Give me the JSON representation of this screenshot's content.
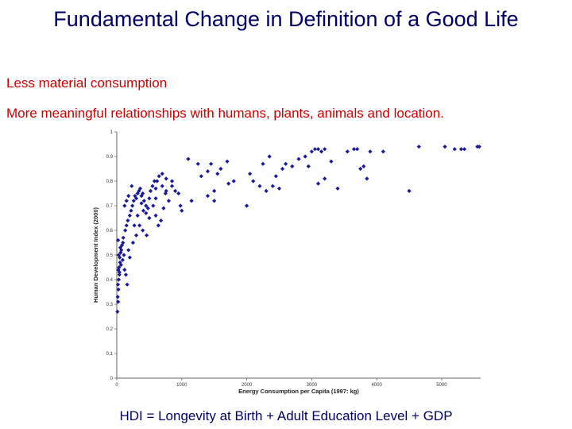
{
  "slide": {
    "title": "Fundamental Change in Definition of a Good Life",
    "bullets": [
      "Less material consumption",
      "More meaningful relationships with humans, plants, animals and location."
    ],
    "caption": "HDI = Longevity at Birth + Adult Education Level + GDP"
  },
  "colors": {
    "title": "#000066",
    "bullets": "#cc0000",
    "points": "#1a1a99"
  },
  "chart_data": {
    "type": "scatter",
    "title": "",
    "xlabel": "Energy Consumption per Capita (1997: kg)",
    "ylabel": "Human Development Index (2000)",
    "xlim": [
      0,
      5600
    ],
    "ylim": [
      0,
      1
    ],
    "xticks": [
      "0",
      "1000",
      "2000",
      "3000",
      "4000",
      "5000"
    ],
    "yticks": [
      "0",
      "0.1",
      "0.2",
      "0.3",
      "0.4",
      "0.5",
      "0.6",
      "0.7",
      "0.8",
      "0.9",
      "1"
    ],
    "grid": false,
    "legend": "none",
    "series": [
      {
        "points": [
          [
            10,
            0.27
          ],
          [
            20,
            0.31
          ],
          [
            15,
            0.33
          ],
          [
            25,
            0.36
          ],
          [
            18,
            0.38
          ],
          [
            30,
            0.4
          ],
          [
            40,
            0.42
          ],
          [
            22,
            0.44
          ],
          [
            35,
            0.45
          ],
          [
            50,
            0.47
          ],
          [
            45,
            0.49
          ],
          [
            30,
            0.5
          ],
          [
            60,
            0.51
          ],
          [
            70,
            0.52
          ],
          [
            55,
            0.53
          ],
          [
            80,
            0.54
          ],
          [
            95,
            0.55
          ],
          [
            20,
            0.56
          ],
          [
            40,
            0.43
          ],
          [
            65,
            0.46
          ],
          [
            90,
            0.48
          ],
          [
            110,
            0.5
          ],
          [
            120,
            0.44
          ],
          [
            140,
            0.42
          ],
          [
            160,
            0.38
          ],
          [
            180,
            0.52
          ],
          [
            100,
            0.57
          ],
          [
            130,
            0.6
          ],
          [
            150,
            0.62
          ],
          [
            170,
            0.64
          ],
          [
            200,
            0.66
          ],
          [
            220,
            0.68
          ],
          [
            240,
            0.7
          ],
          [
            260,
            0.72
          ],
          [
            280,
            0.74
          ],
          [
            300,
            0.73
          ],
          [
            320,
            0.75
          ],
          [
            340,
            0.76
          ],
          [
            360,
            0.77
          ],
          [
            380,
            0.74
          ],
          [
            400,
            0.75
          ],
          [
            420,
            0.72
          ],
          [
            450,
            0.7
          ],
          [
            480,
            0.69
          ],
          [
            500,
            0.73
          ],
          [
            520,
            0.76
          ],
          [
            550,
            0.78
          ],
          [
            580,
            0.8
          ],
          [
            600,
            0.77
          ],
          [
            620,
            0.8
          ],
          [
            650,
            0.82
          ],
          [
            700,
            0.83
          ],
          [
            700,
            0.78
          ],
          [
            750,
            0.75
          ],
          [
            200,
            0.49
          ],
          [
            250,
            0.55
          ],
          [
            300,
            0.58
          ],
          [
            350,
            0.62
          ],
          [
            400,
            0.6
          ],
          [
            450,
            0.67
          ],
          [
            150,
            0.72
          ],
          [
            120,
            0.7
          ],
          [
            180,
            0.74
          ],
          [
            230,
            0.78
          ],
          [
            270,
            0.62
          ],
          [
            320,
            0.66
          ],
          [
            380,
            0.71
          ],
          [
            410,
            0.68
          ],
          [
            460,
            0.58
          ],
          [
            500,
            0.65
          ],
          [
            560,
            0.7
          ],
          [
            600,
            0.66
          ],
          [
            640,
            0.62
          ],
          [
            680,
            0.64
          ],
          [
            720,
            0.69
          ],
          [
            800,
            0.72
          ],
          [
            850,
            0.78
          ],
          [
            950,
            0.75
          ],
          [
            980,
            0.7
          ],
          [
            1000,
            0.68
          ],
          [
            1100,
            0.89
          ],
          [
            1250,
            0.87
          ],
          [
            1300,
            0.82
          ],
          [
            1400,
            0.84
          ],
          [
            1450,
            0.87
          ],
          [
            1500,
            0.76
          ],
          [
            1550,
            0.83
          ],
          [
            1600,
            0.85
          ],
          [
            1700,
            0.88
          ],
          [
            1720,
            0.79
          ],
          [
            1400,
            0.74
          ],
          [
            1500,
            0.72
          ],
          [
            1800,
            0.8
          ],
          [
            2000,
            0.7
          ],
          [
            2050,
            0.83
          ],
          [
            2100,
            0.8
          ],
          [
            2200,
            0.78
          ],
          [
            2250,
            0.87
          ],
          [
            2300,
            0.76
          ],
          [
            2350,
            0.9
          ],
          [
            2400,
            0.78
          ],
          [
            2450,
            0.82
          ],
          [
            2500,
            0.77
          ],
          [
            2550,
            0.85
          ],
          [
            2600,
            0.87
          ],
          [
            2700,
            0.86
          ],
          [
            2800,
            0.89
          ],
          [
            2900,
            0.9
          ],
          [
            2950,
            0.86
          ],
          [
            3000,
            0.92
          ],
          [
            3050,
            0.93
          ],
          [
            3100,
            0.93
          ],
          [
            3150,
            0.92
          ],
          [
            3200,
            0.93
          ],
          [
            3100,
            0.79
          ],
          [
            3200,
            0.81
          ],
          [
            3300,
            0.88
          ],
          [
            3400,
            0.77
          ],
          [
            3550,
            0.92
          ],
          [
            3700,
            0.93
          ],
          [
            3750,
            0.85
          ],
          [
            3800,
            0.86
          ],
          [
            3850,
            0.81
          ],
          [
            3900,
            0.92
          ],
          [
            3650,
            0.93
          ],
          [
            4100,
            0.92
          ],
          [
            4500,
            0.76
          ],
          [
            4650,
            0.94
          ],
          [
            5050,
            0.94
          ],
          [
            5200,
            0.93
          ],
          [
            5300,
            0.93
          ],
          [
            5350,
            0.93
          ],
          [
            5550,
            0.94
          ],
          [
            5580,
            0.94
          ],
          [
            1150,
            0.72
          ],
          [
            850,
            0.8
          ],
          [
            900,
            0.76
          ],
          [
            760,
            0.81
          ],
          [
            760,
            0.76
          ],
          [
            600,
            0.73
          ]
        ]
      }
    ]
  }
}
